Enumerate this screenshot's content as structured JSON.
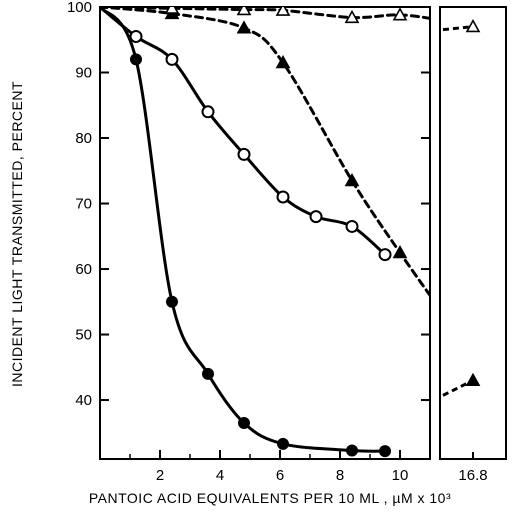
{
  "chart_data": {
    "type": "line",
    "xlabel": "PANTOIC ACID EQUIVALENTS PER 10 ML , µM x 10³",
    "ylabel": "INCIDENT LIGHT TRANSMITTED, PERCENT",
    "xlim": [
      0,
      11
    ],
    "ylim": [
      100,
      31
    ],
    "y_inverted": true,
    "x_ticks": [
      2,
      4,
      6,
      8,
      10
    ],
    "x_tick_labels": [
      "2",
      "4",
      "6",
      "8",
      "10"
    ],
    "y_ticks": [
      40,
      50,
      60,
      70,
      80,
      90,
      100
    ],
    "y_tick_labels": [
      "40",
      "50",
      "60",
      "70",
      "80",
      "90",
      "100"
    ],
    "break_panel": {
      "x": 16.8,
      "tick_label": "16.8"
    },
    "grid": false,
    "series": [
      {
        "marker": "filled-circle",
        "line_style": "solid",
        "points": [
          [
            1.2,
            92
          ],
          [
            2.4,
            55
          ],
          [
            3.6,
            44
          ],
          [
            4.8,
            36.5
          ],
          [
            6.1,
            33.3
          ],
          [
            8.4,
            32.3
          ],
          [
            9.5,
            32.2
          ]
        ]
      },
      {
        "marker": "open-circle",
        "line_style": "solid",
        "points": [
          [
            1.2,
            95.5
          ],
          [
            2.4,
            92
          ],
          [
            3.6,
            84
          ],
          [
            4.8,
            77.5
          ],
          [
            6.1,
            71
          ],
          [
            7.2,
            68
          ],
          [
            8.4,
            66.5
          ],
          [
            9.5,
            62.2
          ]
        ]
      },
      {
        "marker": "filled-triangle",
        "line_style": "dashed",
        "points": [
          [
            2.4,
            99
          ],
          [
            4.8,
            96.8
          ],
          [
            6.1,
            91.5
          ],
          [
            8.4,
            73.5
          ],
          [
            10.0,
            62.5
          ],
          [
            16.8,
            43
          ]
        ]
      },
      {
        "marker": "open-triangle",
        "line_style": "dashed",
        "points": [
          [
            2.4,
            99.8
          ],
          [
            4.8,
            99.6
          ],
          [
            6.1,
            99.5
          ],
          [
            8.4,
            98.4
          ],
          [
            10.0,
            98.8
          ],
          [
            16.8,
            97
          ]
        ]
      }
    ]
  }
}
